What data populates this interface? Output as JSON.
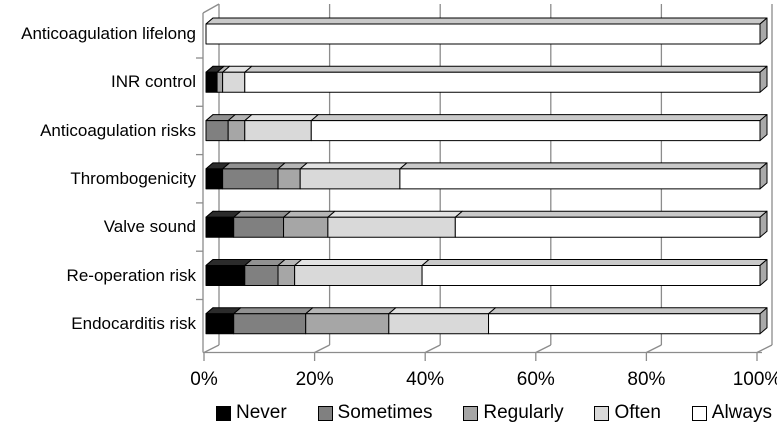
{
  "chart_data": {
    "type": "bar",
    "subtype": "horizontal-stacked-3d",
    "title": "",
    "xlabel": "",
    "ylabel": "",
    "xlim": [
      0,
      100
    ],
    "grid": true,
    "legend_position": "bottom",
    "categories": [
      "Anticoagulation lifelong",
      "INR control",
      "Anticoagulation risks",
      "Thrombogenicity",
      "Valve sound",
      "Re-operation risk",
      "Endocarditis risk"
    ],
    "series": [
      {
        "name": "Never",
        "color": "#000000",
        "values": [
          0,
          2,
          0,
          3,
          5,
          7,
          5
        ]
      },
      {
        "name": "Sometimes",
        "color": "#808080",
        "values": [
          0,
          0,
          4,
          10,
          9,
          6,
          13
        ]
      },
      {
        "name": "Regularly",
        "color": "#a6a6a6",
        "values": [
          0,
          1,
          3,
          4,
          8,
          3,
          15
        ]
      },
      {
        "name": "Often",
        "color": "#d9d9d9",
        "values": [
          0,
          4,
          12,
          18,
          23,
          23,
          18
        ]
      },
      {
        "name": "Always",
        "color": "#ffffff",
        "values": [
          100,
          93,
          81,
          65,
          55,
          61,
          49
        ]
      }
    ],
    "x_ticks": [
      "0%",
      "20%",
      "40%",
      "60%",
      "80%",
      "100%"
    ],
    "axis_color": "#8c8c8c",
    "bar_outline_color": "#000000"
  }
}
